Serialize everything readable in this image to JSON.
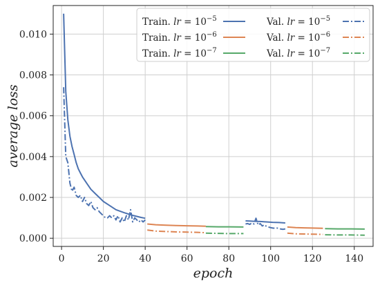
{
  "chart_data": {
    "type": "line",
    "title": "",
    "xlabel": "epoch",
    "ylabel": "average loss",
    "xlim": [
      -4,
      149
    ],
    "ylim": [
      -0.0004,
      0.0114
    ],
    "xticks": [
      0,
      20,
      40,
      60,
      80,
      100,
      120,
      140
    ],
    "yticks": [
      0.0,
      0.002,
      0.004,
      0.006,
      0.008,
      0.01
    ],
    "xtick_labels": [
      "0",
      "20",
      "40",
      "60",
      "80",
      "100",
      "120",
      "140"
    ],
    "ytick_labels": [
      "0.000",
      "0.002",
      "0.004",
      "0.006",
      "0.008",
      "0.010"
    ],
    "grid": true,
    "legend_position": "top-right",
    "legend_columns": 2,
    "series": [
      {
        "name": "Train. lr = 10^-5",
        "label_prefix": "Train.",
        "exponent": "-5",
        "color": "#4c72b0",
        "dash": "solid",
        "segments": [
          [
            [
              1,
              0.011
            ],
            [
              2,
              0.0072
            ],
            [
              3,
              0.0058
            ],
            [
              4,
              0.005
            ],
            [
              5,
              0.0045
            ],
            [
              6,
              0.0041
            ],
            [
              7,
              0.0037
            ],
            [
              8,
              0.0034
            ],
            [
              9,
              0.0032
            ],
            [
              10,
              0.003
            ],
            [
              12,
              0.0027
            ],
            [
              14,
              0.0024
            ],
            [
              16,
              0.0022
            ],
            [
              18,
              0.002
            ],
            [
              20,
              0.0018
            ],
            [
              23,
              0.0016
            ],
            [
              26,
              0.0014
            ],
            [
              30,
              0.00125
            ],
            [
              34,
              0.00112
            ],
            [
              38,
              0.00102
            ],
            [
              40,
              0.00098
            ]
          ],
          [
            [
              88,
              0.00085
            ],
            [
              90,
              0.00084
            ],
            [
              92,
              0.00083
            ],
            [
              95,
              0.00082
            ],
            [
              98,
              0.0008
            ],
            [
              101,
              0.00078
            ],
            [
              104,
              0.00077
            ],
            [
              107,
              0.00075
            ]
          ]
        ]
      },
      {
        "name": "Train. lr = 10^-6",
        "label_prefix": "Train.",
        "exponent": "-6",
        "color": "#dd8452",
        "dash": "solid",
        "segments": [
          [
            [
              41,
              0.0007
            ],
            [
              45,
              0.00066
            ],
            [
              50,
              0.00064
            ],
            [
              55,
              0.00062
            ],
            [
              60,
              0.00061
            ],
            [
              65,
              0.0006
            ],
            [
              69,
              0.00059
            ]
          ],
          [
            [
              108,
              0.00055
            ],
            [
              112,
              0.00052
            ],
            [
              116,
              0.00051
            ],
            [
              120,
              0.0005
            ],
            [
              125,
              0.00049
            ]
          ]
        ]
      },
      {
        "name": "Train. lr = 10^-7",
        "label_prefix": "Train.",
        "exponent": "-7",
        "color": "#55a868",
        "dash": "solid",
        "segments": [
          [
            [
              69,
              0.00057
            ],
            [
              75,
              0.00056
            ],
            [
              80,
              0.00056
            ],
            [
              87,
              0.00055
            ]
          ],
          [
            [
              126,
              0.00047
            ],
            [
              132,
              0.00046
            ],
            [
              138,
              0.00046
            ],
            [
              145,
              0.00045
            ]
          ]
        ]
      },
      {
        "name": "Val. lr = 10^-5",
        "label_prefix": "Val.",
        "exponent": "-5",
        "color": "#4c72b0",
        "dash": "dashdot",
        "segments": [
          [
            [
              1,
              0.0074
            ],
            [
              2,
              0.004
            ],
            [
              3,
              0.0037
            ],
            [
              4,
              0.0027
            ],
            [
              5,
              0.0023
            ],
            [
              6,
              0.0025
            ],
            [
              7,
              0.0021
            ],
            [
              8,
              0.002
            ],
            [
              9,
              0.0021
            ],
            [
              10,
              0.0018
            ],
            [
              11,
              0.002
            ],
            [
              12,
              0.0017
            ],
            [
              13,
              0.0016
            ],
            [
              14,
              0.0018
            ],
            [
              15,
              0.0015
            ],
            [
              16,
              0.0014
            ],
            [
              17,
              0.0015
            ],
            [
              18,
              0.0013
            ],
            [
              19,
              0.0012
            ],
            [
              20,
              0.0011
            ],
            [
              21,
              0.001
            ],
            [
              22,
              0.001
            ],
            [
              23,
              0.0011
            ],
            [
              24,
              0.001
            ],
            [
              25,
              0.0011
            ],
            [
              26,
              0.0009
            ],
            [
              27,
              0.0011
            ],
            [
              28,
              0.0008
            ],
            [
              29,
              0.001
            ],
            [
              30,
              0.0008
            ],
            [
              31,
              0.0011
            ],
            [
              32,
              0.0009
            ],
            [
              33,
              0.0014
            ],
            [
              34,
              0.0008
            ],
            [
              35,
              0.001
            ],
            [
              36,
              0.0009
            ],
            [
              37,
              0.0008
            ],
            [
              38,
              0.0009
            ],
            [
              39,
              0.0008
            ],
            [
              40,
              0.0009
            ]
          ],
          [
            [
              88,
              0.0007
            ],
            [
              89,
              0.00072
            ],
            [
              90,
              0.00068
            ],
            [
              91,
              0.00075
            ],
            [
              92,
              0.0007
            ],
            [
              93,
              0.00098
            ],
            [
              94,
              0.00065
            ],
            [
              95,
              0.00072
            ],
            [
              96,
              0.0006
            ],
            [
              97,
              0.00066
            ],
            [
              98,
              0.00058
            ],
            [
              99,
              0.00055
            ],
            [
              100,
              0.00052
            ],
            [
              101,
              0.0005
            ],
            [
              102,
              0.00049
            ],
            [
              103,
              0.0005
            ],
            [
              104,
              0.00048
            ],
            [
              105,
              0.00045
            ],
            [
              106,
              0.00044
            ],
            [
              107,
              0.00046
            ]
          ]
        ]
      },
      {
        "name": "Val. lr = 10^-6",
        "label_prefix": "Val.",
        "exponent": "-6",
        "color": "#dd8452",
        "dash": "dashdot",
        "segments": [
          [
            [
              41,
              0.0004
            ],
            [
              45,
              0.00035
            ],
            [
              50,
              0.00033
            ],
            [
              55,
              0.00031
            ],
            [
              60,
              0.0003
            ],
            [
              65,
              0.00029
            ],
            [
              69,
              0.00027
            ]
          ],
          [
            [
              108,
              0.00025
            ],
            [
              112,
              0.00022
            ],
            [
              116,
              0.00021
            ],
            [
              120,
              0.0002
            ],
            [
              125,
              0.00019
            ]
          ]
        ]
      },
      {
        "name": "Val. lr = 10^-7",
        "label_prefix": "Val.",
        "exponent": "-7",
        "color": "#55a868",
        "dash": "dashdot",
        "segments": [
          [
            [
              69,
              0.00025
            ],
            [
              75,
              0.00024
            ],
            [
              80,
              0.00023
            ],
            [
              87,
              0.00023
            ]
          ],
          [
            [
              126,
              0.00017
            ],
            [
              132,
              0.00016
            ],
            [
              138,
              0.00016
            ],
            [
              145,
              0.00015
            ]
          ]
        ]
      }
    ]
  }
}
